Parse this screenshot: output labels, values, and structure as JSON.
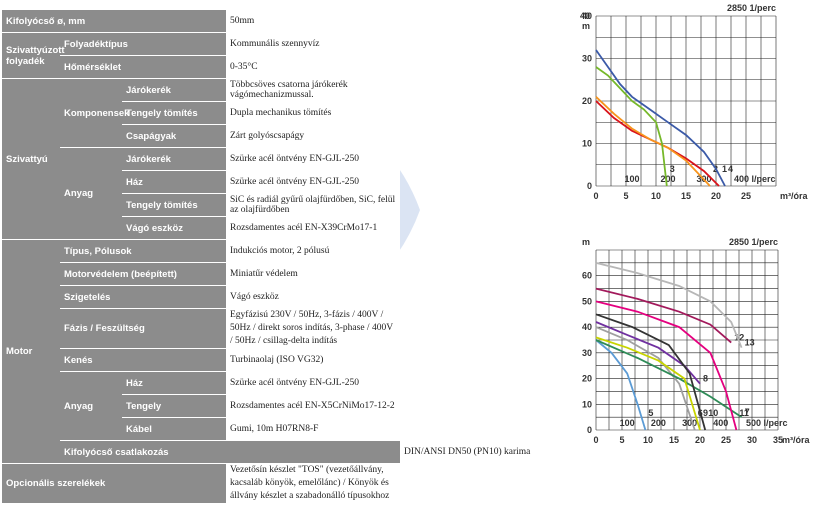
{
  "rows": [
    {
      "label": "Kifolyócső ø, mm",
      "value": "50mm"
    },
    {
      "group": "Szivattyúzott folyadék",
      "label": "Folyadéktípus",
      "value": "Kommunális szennyvíz"
    },
    {
      "label": "Hőmérséklet",
      "value": "0-35°C"
    },
    {
      "group": "Szivattyú",
      "sub": "Komponensek",
      "label": "Járókerék",
      "value": "Többcsöves csatorna járókerék vágómechanizmussal."
    },
    {
      "label": "Tengely tömítés",
      "value": "Dupla mechanikus tömítés"
    },
    {
      "label": "Csapágyak",
      "value": "Zárt golyóscsapágy"
    },
    {
      "sub": "Anyag",
      "label": "Járókerék",
      "value": "Szürke acél öntvény EN-GJL-250"
    },
    {
      "label": "Ház",
      "value": "Szürke acél öntvény EN-GJL-250"
    },
    {
      "label": "Tengely tömítés",
      "value": "SiC és radiál gyűrű olajfürdőben, SiC, felül az olajfürdőben"
    },
    {
      "label": "Vágó eszköz",
      "value": "Rozsdamentes acél EN-X39CrMo17-1"
    },
    {
      "group": "Motor",
      "label": "Típus, Pólusok",
      "value": "Indukciós motor, 2 pólusú"
    },
    {
      "label": "Motorvédelem (beépített)",
      "value": "Miniatűr védelem"
    },
    {
      "label": "Szigetelés",
      "value": "Vágó eszköz"
    },
    {
      "label": "Fázis / Feszültség",
      "value": "Egyfázisú 230V / 50Hz, 3-fázis / 400V / 50Hz / direkt soros indítás, 3-phase / 400V / 50Hz / csillag-delta indítás"
    },
    {
      "label": "Kenés",
      "value": "Turbinaolaj (ISO VG32)"
    },
    {
      "sub": "Anyag",
      "label": "Ház",
      "value": "Szürke acél öntvény EN-GJL-250"
    },
    {
      "label": "Tengely",
      "value": "Rozsdamentes acél EN-X5CrNiMo17-12-2"
    },
    {
      "label": "Kábel",
      "value": "Gumi, 10m H07RN8-F"
    },
    {
      "label": "Kifolyócső csatlakozás",
      "value": "DIN/ANSI DN50 (PN10) karima"
    },
    {
      "label": "Opcionális szerelékek",
      "value": "Vezetősín készlet \"TOS\" (vezetőállvány, kacsaláb könyök, emelőlánc) / Könyök és állvány készlet a szabadonálló típusokhoz"
    }
  ],
  "chart_data": [
    {
      "type": "line",
      "title": "2850 1/perc",
      "ylabel": "40 m",
      "ylim": [
        0,
        40
      ],
      "yticks": [
        0,
        10,
        20,
        30,
        40
      ],
      "xticks_flow_lmin": [
        100,
        200,
        300
      ],
      "xticks_flow_lmin_last": "400 l/perc",
      "xlim_m3h": [
        0,
        30
      ],
      "xticks_m3h": [
        "0",
        "5",
        "10",
        "15",
        "20",
        "25",
        "m³/óra"
      ],
      "series": [
        {
          "name": "1",
          "color": "#d9131b",
          "x": [
            0,
            3,
            6,
            9,
            12,
            15,
            18,
            20.5
          ],
          "y": [
            20,
            16,
            13,
            11,
            9,
            6.5,
            3.5,
            0
          ]
        },
        {
          "name": "2",
          "color": "#f7941d",
          "x": [
            0,
            3,
            6,
            9,
            12,
            15,
            17,
            19
          ],
          "y": [
            21,
            17,
            13.5,
            11,
            9,
            6,
            3,
            0
          ]
        },
        {
          "name": "3",
          "color": "#76b82a",
          "x": [
            0,
            2,
            4,
            6,
            8,
            10,
            11,
            11.8
          ],
          "y": [
            28,
            26,
            23,
            20,
            18,
            15,
            10,
            0
          ]
        },
        {
          "name": "4",
          "color": "#3b5aa8",
          "x": [
            0,
            2,
            4,
            6,
            9,
            12,
            15,
            18,
            20,
            21.5
          ],
          "y": [
            32,
            28,
            24,
            21,
            18,
            15,
            12,
            8,
            4,
            0
          ]
        }
      ],
      "labels_at_end": [
        "3",
        "2",
        "1",
        "4"
      ]
    },
    {
      "type": "line",
      "title": "2850 1/perc",
      "ylabel": "m",
      "ylim": [
        0,
        70
      ],
      "yticks": [
        0,
        10,
        20,
        30,
        40,
        50,
        60
      ],
      "xticks_flow_lmin": [
        100,
        200,
        300,
        400
      ],
      "xticks_flow_lmin_last": "500 l/perc",
      "xlim_m3h": [
        0,
        35
      ],
      "xticks_m3h": [
        "0",
        "5",
        "10",
        "15",
        "20",
        "25",
        "30",
        "35",
        "m³/óra"
      ],
      "series": [
        {
          "name": "5",
          "color": "#5b9bd5",
          "x": [
            0,
            3,
            6,
            8,
            9.5
          ],
          "y": [
            35,
            30,
            22,
            10,
            0
          ]
        },
        {
          "name": "6",
          "color": "#a0a0a0",
          "x": [
            0,
            6,
            12,
            16,
            19
          ],
          "y": [
            40,
            35,
            28,
            18,
            0
          ]
        },
        {
          "name": "7",
          "color": "#2e8b57",
          "x": [
            0,
            8,
            16,
            22,
            28
          ],
          "y": [
            35,
            28,
            20,
            13,
            5
          ]
        },
        {
          "name": "8",
          "color": "#7030a0",
          "x": [
            0,
            6,
            12,
            17,
            20
          ],
          "y": [
            42,
            37,
            32,
            25,
            18
          ]
        },
        {
          "name": "9",
          "color": "#c8d400",
          "x": [
            0,
            6,
            12,
            17,
            20
          ],
          "y": [
            36,
            32,
            27,
            20,
            0
          ]
        },
        {
          "name": "10",
          "color": "#333333",
          "x": [
            0,
            7,
            14,
            18,
            21
          ],
          "y": [
            45,
            40,
            33,
            22,
            0
          ]
        },
        {
          "name": "11",
          "color": "#e4007f",
          "x": [
            0,
            8,
            16,
            22,
            25,
            27
          ],
          "y": [
            50,
            46,
            40,
            30,
            15,
            0
          ]
        },
        {
          "name": "12",
          "color": "#a2195b",
          "x": [
            0,
            8,
            16,
            22,
            26
          ],
          "y": [
            55,
            51,
            46,
            41,
            34
          ]
        },
        {
          "name": "13",
          "color": "#b7b7b7",
          "x": [
            0,
            8,
            16,
            22,
            26,
            28
          ],
          "y": [
            65,
            61,
            56,
            50,
            42,
            32
          ]
        }
      ],
      "labels_at_end": [
        "5",
        "6",
        "9",
        "10",
        "8",
        "7",
        "11",
        "12",
        "13"
      ]
    }
  ]
}
